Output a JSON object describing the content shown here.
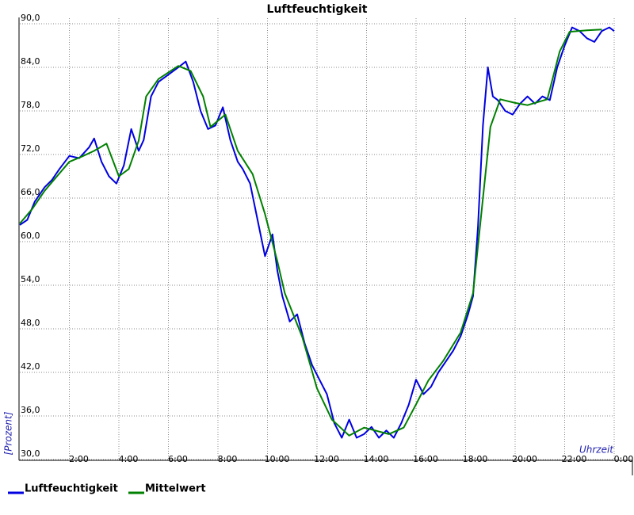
{
  "chart_data": {
    "type": "line",
    "title": "Luftfeuchtigkeit",
    "y_label": "[Prozent]",
    "x_label": "Uhrzeit",
    "xlim": [
      0,
      24
    ],
    "ylim": [
      30,
      90
    ],
    "xticks": [
      {
        "value": 2,
        "label": "2:00"
      },
      {
        "value": 4,
        "label": "4:00"
      },
      {
        "value": 6,
        "label": "6:00"
      },
      {
        "value": 8,
        "label": "8:00"
      },
      {
        "value": 10,
        "label": "10:00"
      },
      {
        "value": 12,
        "label": "12:00"
      },
      {
        "value": 14,
        "label": "14:00"
      },
      {
        "value": 16,
        "label": "16:00"
      },
      {
        "value": 18,
        "label": "18:00"
      },
      {
        "value": 20,
        "label": "20:00"
      },
      {
        "value": 22,
        "label": "22:00"
      },
      {
        "value": 24,
        "label": "0:00"
      }
    ],
    "yticks": [
      {
        "value": 30,
        "label": "30,0"
      },
      {
        "value": 36,
        "label": "36,0"
      },
      {
        "value": 42,
        "label": "42,0"
      },
      {
        "value": 48,
        "label": "48,0"
      },
      {
        "value": 54,
        "label": "54,0"
      },
      {
        "value": 60,
        "label": "60,0"
      },
      {
        "value": 66,
        "label": "66,0"
      },
      {
        "value": 72,
        "label": "72,0"
      },
      {
        "value": 78,
        "label": "78,0"
      },
      {
        "value": 84,
        "label": "84,0"
      },
      {
        "value": 90,
        "label": "90,0"
      }
    ],
    "grid": true,
    "series": [
      {
        "name": "Luftfeuchtigkeit",
        "color": "#0000e0",
        "x": [
          0,
          0.3,
          0.6,
          1,
          1.3,
          1.6,
          2,
          2.4,
          2.8,
          3,
          3.3,
          3.6,
          3.9,
          4.2,
          4.5,
          4.8,
          5,
          5.3,
          5.6,
          6,
          6.4,
          6.7,
          7,
          7.3,
          7.6,
          7.9,
          8.2,
          8.5,
          8.8,
          9,
          9.3,
          9.6,
          9.9,
          10.2,
          10.4,
          10.6,
          10.9,
          11.2,
          11.5,
          11.8,
          12.1,
          12.4,
          12.7,
          13,
          13.3,
          13.6,
          13.9,
          14.2,
          14.5,
          14.8,
          15.1,
          15.4,
          15.7,
          16,
          16.3,
          16.6,
          16.9,
          17.2,
          17.5,
          17.8,
          18.1,
          18.3,
          18.5,
          18.7,
          18.9,
          19.1,
          19.3,
          19.6,
          19.9,
          20.2,
          20.5,
          20.8,
          21.1,
          21.4,
          21.7,
          22,
          22.3,
          22.6,
          22.9,
          23.2,
          23.5,
          23.8,
          24
        ],
        "values": [
          62.3,
          63,
          65.5,
          67.5,
          68.5,
          70,
          71.8,
          71.5,
          73,
          74.2,
          71,
          69,
          68,
          70.5,
          75.5,
          72.5,
          74,
          80,
          82,
          83,
          84,
          84.8,
          82,
          78,
          75.5,
          76,
          78.5,
          74,
          71,
          70,
          68,
          63,
          58,
          61,
          56,
          52.5,
          49,
          50,
          46,
          43,
          41,
          39,
          35,
          33,
          35.5,
          33,
          33.5,
          34.5,
          33,
          34,
          33,
          35,
          37.5,
          41,
          39,
          40,
          42,
          43.5,
          45,
          47,
          50,
          52.5,
          62,
          76,
          84,
          80,
          79.5,
          78,
          77.5,
          79,
          80,
          79,
          80,
          79.5,
          84,
          87,
          89.5,
          89,
          88,
          87.5,
          89,
          89.5,
          89
        ]
      },
      {
        "name": "Mittelwert",
        "color": "#008000",
        "x": [
          0,
          0.5,
          1,
          1.5,
          2,
          2.5,
          3,
          3.5,
          4,
          4.4,
          4.8,
          5.1,
          5.6,
          6.4,
          6.9,
          7.4,
          7.7,
          8.3,
          8.8,
          9.4,
          9.9,
          10.4,
          10.7,
          11.4,
          12,
          12.6,
          13.3,
          13.9,
          14.9,
          15.5,
          16,
          16.5,
          17.1,
          17.8,
          18.3,
          18.7,
          19,
          19.4,
          20,
          20.5,
          21.3,
          21.8,
          22.2,
          22.9,
          23.5
        ],
        "values": [
          62.5,
          64.5,
          67,
          69,
          71,
          71.7,
          72.5,
          73.5,
          69,
          70,
          73.9,
          80,
          82.4,
          84.2,
          83.5,
          80,
          75.8,
          77.5,
          72.5,
          69.3,
          63.8,
          57.3,
          52.9,
          46.9,
          39.8,
          35.5,
          33.3,
          34.4,
          33.5,
          34.4,
          37.6,
          40.9,
          43.6,
          47.5,
          52.9,
          66,
          75.8,
          79.6,
          79.1,
          78.8,
          79.6,
          86.2,
          88.9,
          89.1,
          89.2
        ]
      }
    ]
  }
}
